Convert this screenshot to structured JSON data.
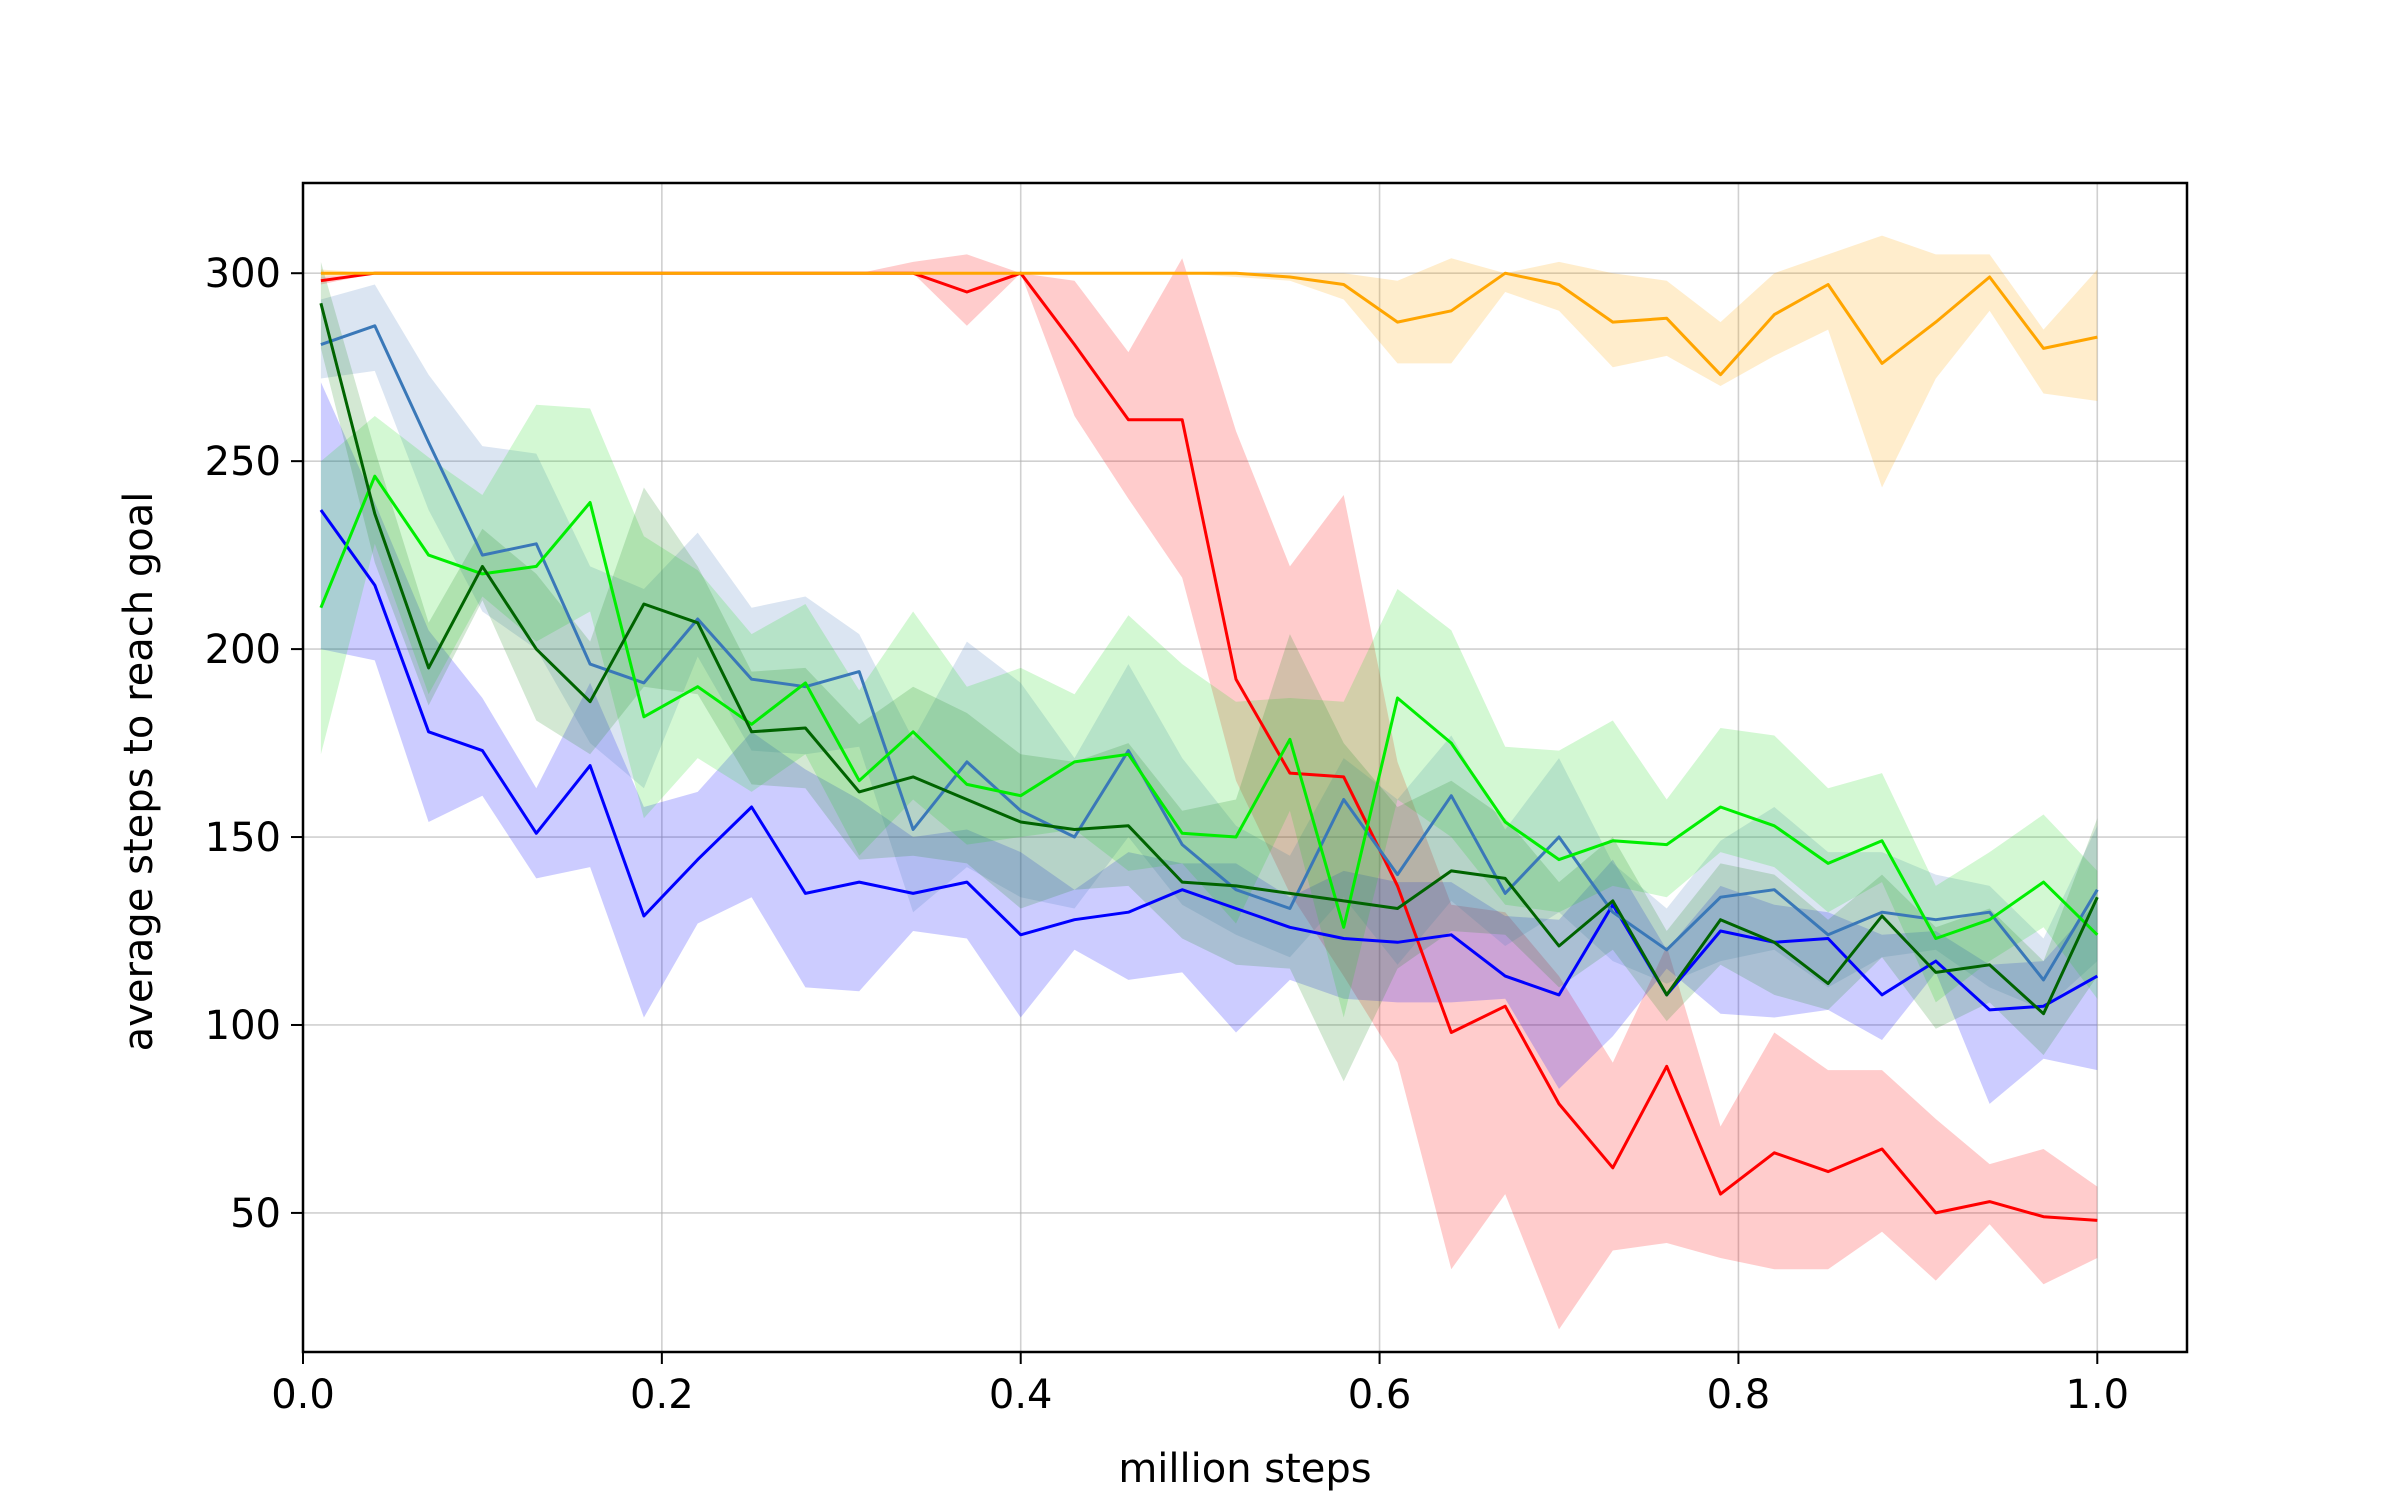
{
  "chart_data": {
    "type": "line",
    "title": "",
    "xlabel": "million steps",
    "ylabel": "average steps to reach goal",
    "xlim": [
      -0.0,
      1.05
    ],
    "ylim": [
      13,
      324
    ],
    "grid": true,
    "x_ticks": [
      "0.0",
      "0.2",
      "0.4",
      "0.6",
      "0.8",
      "1.0"
    ],
    "y_ticks": [
      "50",
      "100",
      "150",
      "200",
      "250",
      "300"
    ],
    "x": [
      0.01,
      0.04,
      0.07,
      0.1,
      0.13,
      0.16,
      0.19,
      0.22,
      0.25,
      0.28,
      0.31,
      0.34,
      0.37,
      0.4,
      0.43,
      0.46,
      0.49,
      0.52,
      0.55,
      0.58,
      0.61,
      0.64,
      0.67,
      0.7,
      0.73,
      0.76,
      0.79,
      0.82,
      0.85,
      0.88,
      0.91,
      0.94,
      0.97,
      1.0
    ],
    "series": [
      {
        "color": "#ff0000",
        "band_color": "#ff0000",
        "values": [
          298,
          300,
          300,
          300,
          300,
          300,
          300,
          300,
          300,
          300,
          300,
          300,
          295,
          300,
          281,
          261,
          261,
          192,
          167,
          166,
          137,
          98,
          105,
          79,
          62,
          89,
          55,
          66,
          61,
          67,
          50,
          53,
          49,
          48
        ],
        "lower": [
          297,
          300,
          300,
          300,
          300,
          300,
          300,
          300,
          300,
          300,
          300,
          300,
          286,
          300,
          262,
          240,
          219,
          165,
          135,
          113,
          90,
          35,
          55,
          19,
          40,
          42,
          38,
          35,
          35,
          45,
          32,
          47,
          31,
          38
        ],
        "upper": [
          299,
          300,
          300,
          300,
          300,
          300,
          300,
          300,
          300,
          300,
          300,
          303,
          305,
          300,
          298,
          279,
          304,
          258,
          222,
          241,
          170,
          132,
          130,
          113,
          90,
          121,
          73,
          98,
          88,
          88,
          75,
          63,
          67,
          57
        ]
      },
      {
        "color": "#ffa500",
        "band_color": "#ffa500",
        "values": [
          300,
          300,
          300,
          300,
          300,
          300,
          300,
          300,
          300,
          300,
          300,
          300,
          300,
          300,
          300,
          300,
          300,
          300,
          299,
          297,
          287,
          290,
          300,
          297,
          287,
          288,
          273,
          289,
          297,
          276,
          287,
          299,
          280,
          283
        ],
        "lower": [
          299,
          300,
          300,
          300,
          300,
          300,
          300,
          300,
          300,
          300,
          300,
          300,
          300,
          300,
          300,
          300,
          300,
          299,
          298,
          293,
          276,
          276,
          295,
          290,
          275,
          278,
          270,
          278,
          285,
          243,
          272,
          290,
          268,
          266
        ],
        "upper": [
          301,
          300,
          300,
          300,
          300,
          300,
          300,
          300,
          300,
          300,
          300,
          300,
          300,
          300,
          300,
          300,
          300,
          300,
          300,
          300,
          298,
          304,
          300,
          303,
          300,
          298,
          287,
          300,
          305,
          310,
          305,
          305,
          285,
          301
        ]
      },
      {
        "color": "#0000ff",
        "band_color": "#0000ff",
        "values": [
          237,
          217,
          178,
          173,
          151,
          169,
          129,
          144,
          158,
          135,
          138,
          135,
          138,
          124,
          128,
          130,
          136,
          131,
          126,
          123,
          122,
          124,
          113,
          108,
          132,
          108,
          125,
          122,
          123,
          108,
          117,
          104,
          105,
          113
        ],
        "lower": [
          200,
          197,
          154,
          161,
          139,
          142,
          102,
          127,
          134,
          110,
          109,
          125,
          123,
          102,
          120,
          112,
          114,
          98,
          112,
          107,
          106,
          106,
          107,
          83,
          97,
          115,
          103,
          102,
          104,
          96,
          114,
          79,
          91,
          88
        ],
        "upper": [
          271,
          239,
          205,
          187,
          163,
          191,
          158,
          162,
          178,
          168,
          160,
          150,
          152,
          146,
          136,
          146,
          143,
          143,
          134,
          141,
          138,
          138,
          129,
          128,
          144,
          120,
          137,
          132,
          130,
          124,
          125,
          116,
          117,
          133
        ]
      },
      {
        "color": "#3a78b8",
        "band_color": "#4a7fbf",
        "values": [
          281,
          286,
          255,
          225,
          228,
          196,
          191,
          208,
          192,
          190,
          194,
          152,
          170,
          157,
          150,
          173,
          148,
          136,
          131,
          160,
          140,
          161,
          135,
          150,
          130,
          120,
          134,
          136,
          124,
          130,
          128,
          130,
          112,
          136
        ],
        "lower": [
          272,
          274,
          237,
          210,
          200,
          175,
          163,
          198,
          173,
          172,
          174,
          130,
          142,
          134,
          131,
          150,
          132,
          124,
          118,
          134,
          116,
          133,
          121,
          130,
          117,
          111,
          117,
          120,
          110,
          118,
          120,
          110,
          104,
          117
        ],
        "upper": [
          293,
          297,
          273,
          254,
          252,
          222,
          216,
          231,
          211,
          214,
          204,
          176,
          202,
          191,
          171,
          196,
          171,
          153,
          145,
          171,
          160,
          177,
          152,
          171,
          143,
          131,
          149,
          158,
          146,
          146,
          140,
          137,
          123,
          153
        ]
      },
      {
        "color": "#00ee00",
        "band_color": "#22dd22",
        "values": [
          211,
          246,
          225,
          220,
          222,
          239,
          182,
          190,
          180,
          191,
          165,
          178,
          164,
          161,
          170,
          172,
          151,
          150,
          176,
          126,
          187,
          175,
          154,
          144,
          149,
          148,
          158,
          153,
          143,
          149,
          123,
          128,
          138,
          124
        ],
        "lower": [
          172,
          228,
          188,
          214,
          202,
          210,
          155,
          171,
          162,
          172,
          145,
          160,
          148,
          150,
          152,
          141,
          143,
          127,
          157,
          102,
          160,
          150,
          132,
          130,
          137,
          134,
          146,
          142,
          130,
          138,
          106,
          117,
          126,
          107
        ],
        "upper": [
          250,
          262,
          251,
          241,
          265,
          264,
          230,
          221,
          204,
          212,
          189,
          210,
          190,
          195,
          188,
          209,
          196,
          186,
          187,
          186,
          216,
          205,
          174,
          173,
          181,
          160,
          179,
          177,
          163,
          167,
          137,
          146,
          156,
          141
        ]
      },
      {
        "color": "#006400",
        "band_color": "#228b22",
        "values": [
          292,
          236,
          195,
          222,
          200,
          186,
          212,
          207,
          178,
          179,
          162,
          166,
          160,
          154,
          152,
          153,
          138,
          137,
          135,
          133,
          131,
          141,
          139,
          121,
          133,
          108,
          128,
          122,
          111,
          129,
          114,
          116,
          103,
          134
        ],
        "lower": [
          280,
          223,
          185,
          213,
          181,
          172,
          190,
          188,
          164,
          163,
          144,
          145,
          143,
          131,
          136,
          137,
          123,
          116,
          115,
          85,
          115,
          125,
          124,
          110,
          120,
          101,
          116,
          108,
          104,
          118,
          99,
          106,
          92,
          113
        ],
        "upper": [
          303,
          253,
          207,
          232,
          220,
          202,
          243,
          222,
          194,
          195,
          180,
          190,
          183,
          172,
          170,
          175,
          157,
          160,
          204,
          175,
          158,
          165,
          155,
          138,
          150,
          125,
          143,
          140,
          128,
          140,
          126,
          131,
          117,
          155
        ]
      }
    ]
  }
}
